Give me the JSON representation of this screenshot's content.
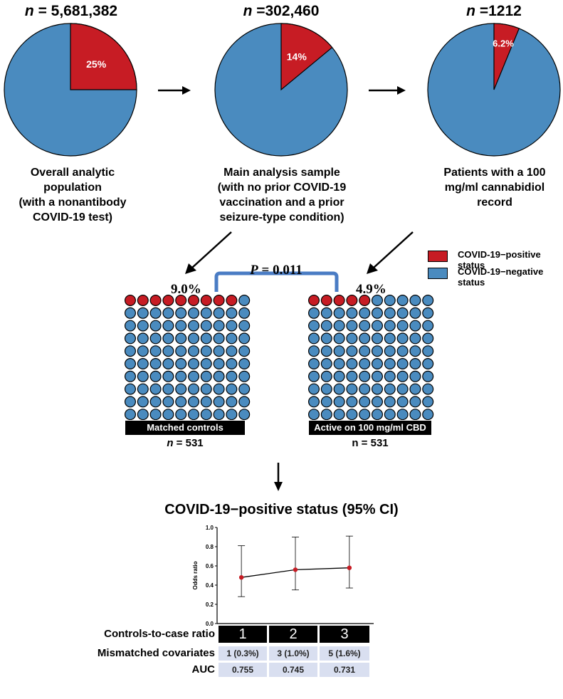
{
  "pies": [
    {
      "n_label": "n",
      "n_value": " = 5,681,382",
      "positive_pct": 25,
      "pct_label": "25%",
      "caption": [
        "Overall analytic population",
        "(with a nonantibody",
        "COVID-19 test)"
      ]
    },
    {
      "n_label": "n",
      "n_value": " =302,460",
      "positive_pct": 14,
      "pct_label": "14%",
      "caption": [
        "Main analysis sample",
        "(with no prior COVID-19",
        "vaccination and a prior",
        "seizure-type condition)"
      ]
    },
    {
      "n_label": "n",
      "n_value": " =1212",
      "positive_pct": 6.2,
      "pct_label": "6.2%",
      "caption": [
        "Patients with a 100",
        "mg/ml cannabidiol",
        "record"
      ]
    }
  ],
  "legend": {
    "positive": "COVID-19−positive status",
    "negative": "COVID-19−negative status"
  },
  "colors": {
    "positive": "#c71c24",
    "negative": "#4a8bbf",
    "bracket": "#4a7cc4"
  },
  "comparison": {
    "p_label": "P",
    "p_value": " = 0.011"
  },
  "groups": [
    {
      "pct_label": "9.0%",
      "positive_dots": 9,
      "total_dots": 100,
      "bar_label": "Matched controls",
      "n_label": "n",
      "n_value": " = 531"
    },
    {
      "pct_label": "4.9%",
      "positive_dots": 5,
      "total_dots": 100,
      "bar_label": "Active on 100 mg/ml CBD",
      "n_label": "n",
      "n_value": " = 531"
    }
  ],
  "chart_title": "COVID-19−positive status (95% CI)",
  "chart_data": {
    "type": "line",
    "x": [
      1,
      2,
      3
    ],
    "y": [
      0.48,
      0.56,
      0.58
    ],
    "ci_low": [
      0.28,
      0.35,
      0.37
    ],
    "ci_high": [
      0.81,
      0.9,
      0.91
    ],
    "ylabel": "Odds ratio",
    "ylim": [
      0.0,
      1.0
    ],
    "yticks": [
      "0.0",
      "0.2",
      "0.4",
      "0.6",
      "0.8",
      "1.0"
    ]
  },
  "table": {
    "ratio_label": "Controls-to-case ratio",
    "ratios": [
      "1",
      "2",
      "3"
    ],
    "mismatch_label": "Mismatched covariates",
    "mismatch": [
      "1 (0.3%)",
      "3 (1.0%)",
      "5 (1.6%)"
    ],
    "auc_label": "AUC",
    "auc": [
      "0.755",
      "0.745",
      "0.731"
    ]
  }
}
